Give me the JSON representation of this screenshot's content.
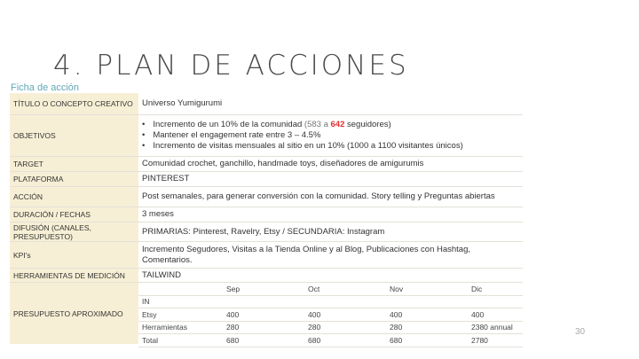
{
  "title": "4. PLAN DE ACCIONES",
  "subtitle": "Ficha de acción",
  "rows": {
    "titulo": {
      "label": "TÍTULO O CONCEPTO CREATIVO",
      "value": "Universo Yumigurumi"
    },
    "objetivos": {
      "label": "OBJETIVOS",
      "items": [
        {
          "a": "Incremento de un 10% de la comunidad ",
          "b": "(583 a ",
          "c": "642",
          "d": " seguidores)"
        },
        {
          "a": "Mantener el engagement rate entre 3 – 4.5%"
        },
        {
          "a": "Incremento de visitas mensuales  al sitio en un 10%  (1000 a 1100 visitantes únicos)"
        }
      ]
    },
    "target": {
      "label": "TARGET",
      "value": "Comunidad crochet, ganchillo, handmade toys, diseñadores de amigurumis"
    },
    "plataforma": {
      "label": "PLATAFORMA",
      "value": "PINTEREST"
    },
    "accion": {
      "label": "ACCIÓN",
      "value": "Post semanales, para generar conversión con la comunidad. Story telling y Preguntas abiertas"
    },
    "duracion": {
      "label": "DURACIÓN / FECHAS",
      "value": "3 meses"
    },
    "difusion": {
      "label": "DIFUSIÓN (CANALES, PRESUPUESTO)",
      "value": "PRIMARIAS: Pinterest, Ravelry, Etsy / SECUNDARIA: Instagram"
    },
    "kpis": {
      "label": "KPI's",
      "value": "Incremento Segudores, Visitas a la Tienda Online y al Blog, Publicaciones con Hashtag, Comentarios."
    },
    "herramientas": {
      "label": "HERRAMIENTAS DE MEDICIÓN",
      "value": "TAILWIND"
    },
    "presupuesto": {
      "label": "PRESUPUESTO APROXIMADO",
      "table": [
        [
          "",
          "Sep",
          "Oct",
          "Nov",
          "Dic"
        ],
        [
          "IN",
          "",
          "",
          "",
          ""
        ],
        [
          "Etsy",
          "400",
          "400",
          "400",
          "400"
        ],
        [
          "Herramientas",
          "280",
          "280",
          "280",
          "2380 annual"
        ],
        [
          "Total",
          "680",
          "680",
          "680",
          "2780"
        ]
      ]
    }
  },
  "page_number": "30"
}
